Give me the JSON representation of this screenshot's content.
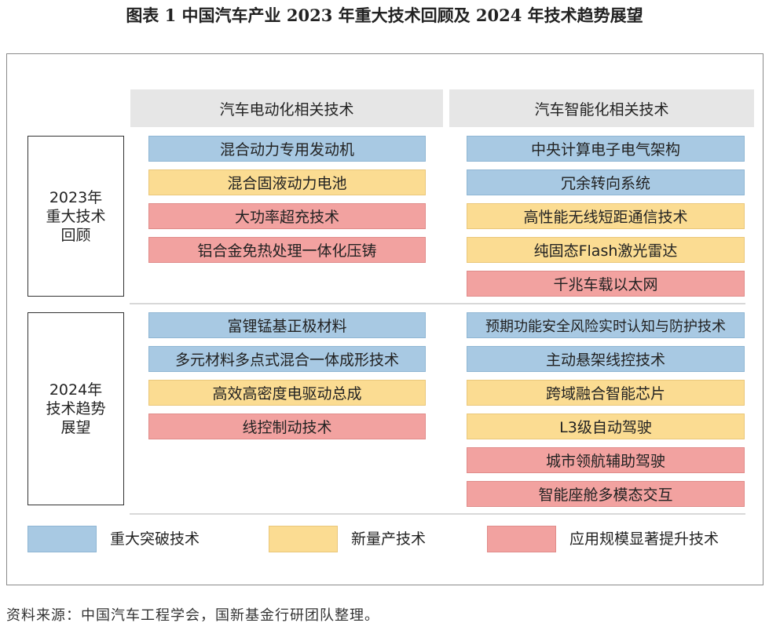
{
  "title": "图表 1  中国汽车产业 2023 年重大技术回顾及 2024 年技术趋势展望",
  "columns": {
    "electric": "汽车电动化相关技术",
    "intelligent": "汽车智能化相关技术"
  },
  "rows": {
    "review_2023": "2023年\n重大技术\n回顾",
    "outlook_2024": "2024年\n技术趋势\n展望"
  },
  "review_2023": {
    "electric": [
      {
        "label": "混合动力专用发动机",
        "category": "breakthrough"
      },
      {
        "label": "混合固液动力电池",
        "category": "mass_production"
      },
      {
        "label": "大功率超充技术",
        "category": "scale_up"
      },
      {
        "label": "铝合金免热处理一体化压铸",
        "category": "scale_up"
      }
    ],
    "intelligent": [
      {
        "label": "中央计算电子电气架构",
        "category": "breakthrough"
      },
      {
        "label": "冗余转向系统",
        "category": "breakthrough"
      },
      {
        "label": "高性能无线短距通信技术",
        "category": "mass_production"
      },
      {
        "label": "纯固态Flash激光雷达",
        "category": "mass_production"
      },
      {
        "label": "千兆车载以太网",
        "category": "scale_up"
      }
    ]
  },
  "outlook_2024": {
    "electric": [
      {
        "label": "富锂锰基正极材料",
        "category": "breakthrough"
      },
      {
        "label": "多元材料多点式混合一体成形技术",
        "category": "breakthrough"
      },
      {
        "label": "高效高密度电驱动总成",
        "category": "mass_production"
      },
      {
        "label": "线控制动技术",
        "category": "scale_up"
      }
    ],
    "intelligent": [
      {
        "label": "预期功能安全风险实时认知与防护技术",
        "category": "breakthrough"
      },
      {
        "label": "主动悬架线控技术",
        "category": "breakthrough"
      },
      {
        "label": "跨域融合智能芯片",
        "category": "mass_production"
      },
      {
        "label": "L3级自动驾驶",
        "category": "mass_production"
      },
      {
        "label": "城市领航辅助驾驶",
        "category": "scale_up"
      },
      {
        "label": "智能座舱多模态交互",
        "category": "scale_up"
      }
    ]
  },
  "legend": {
    "breakthrough": "重大突破技术",
    "mass_production": "新量产技术",
    "scale_up": "应用规模显著提升技术"
  },
  "colors": {
    "breakthrough": "#a8c9e3",
    "mass_production": "#fbdc92",
    "scale_up": "#f2a2a0"
  },
  "source": "资料来源：中国汽车工程学会，国新基金行研团队整理。"
}
